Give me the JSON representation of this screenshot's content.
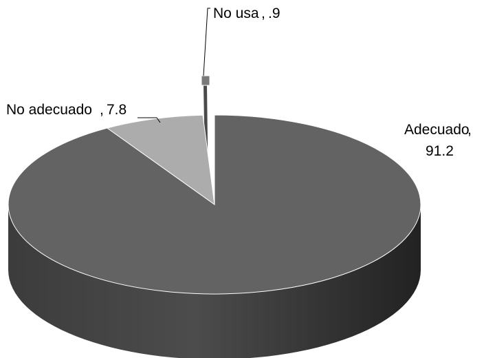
{
  "chart_data": {
    "type": "pie",
    "style": "3d-exploded",
    "title": "",
    "legend": "none",
    "slices": [
      {
        "label": "Adecuado",
        "value": 91.2,
        "value_label": "91.2",
        "color": "#636363"
      },
      {
        "label": "No adecuado",
        "value": 7.8,
        "value_label": "7.8",
        "color": "#acacac"
      },
      {
        "label": "No usa",
        "value": 0.9,
        "value_label": ".9",
        "color": "#7a7a7a"
      }
    ]
  }
}
